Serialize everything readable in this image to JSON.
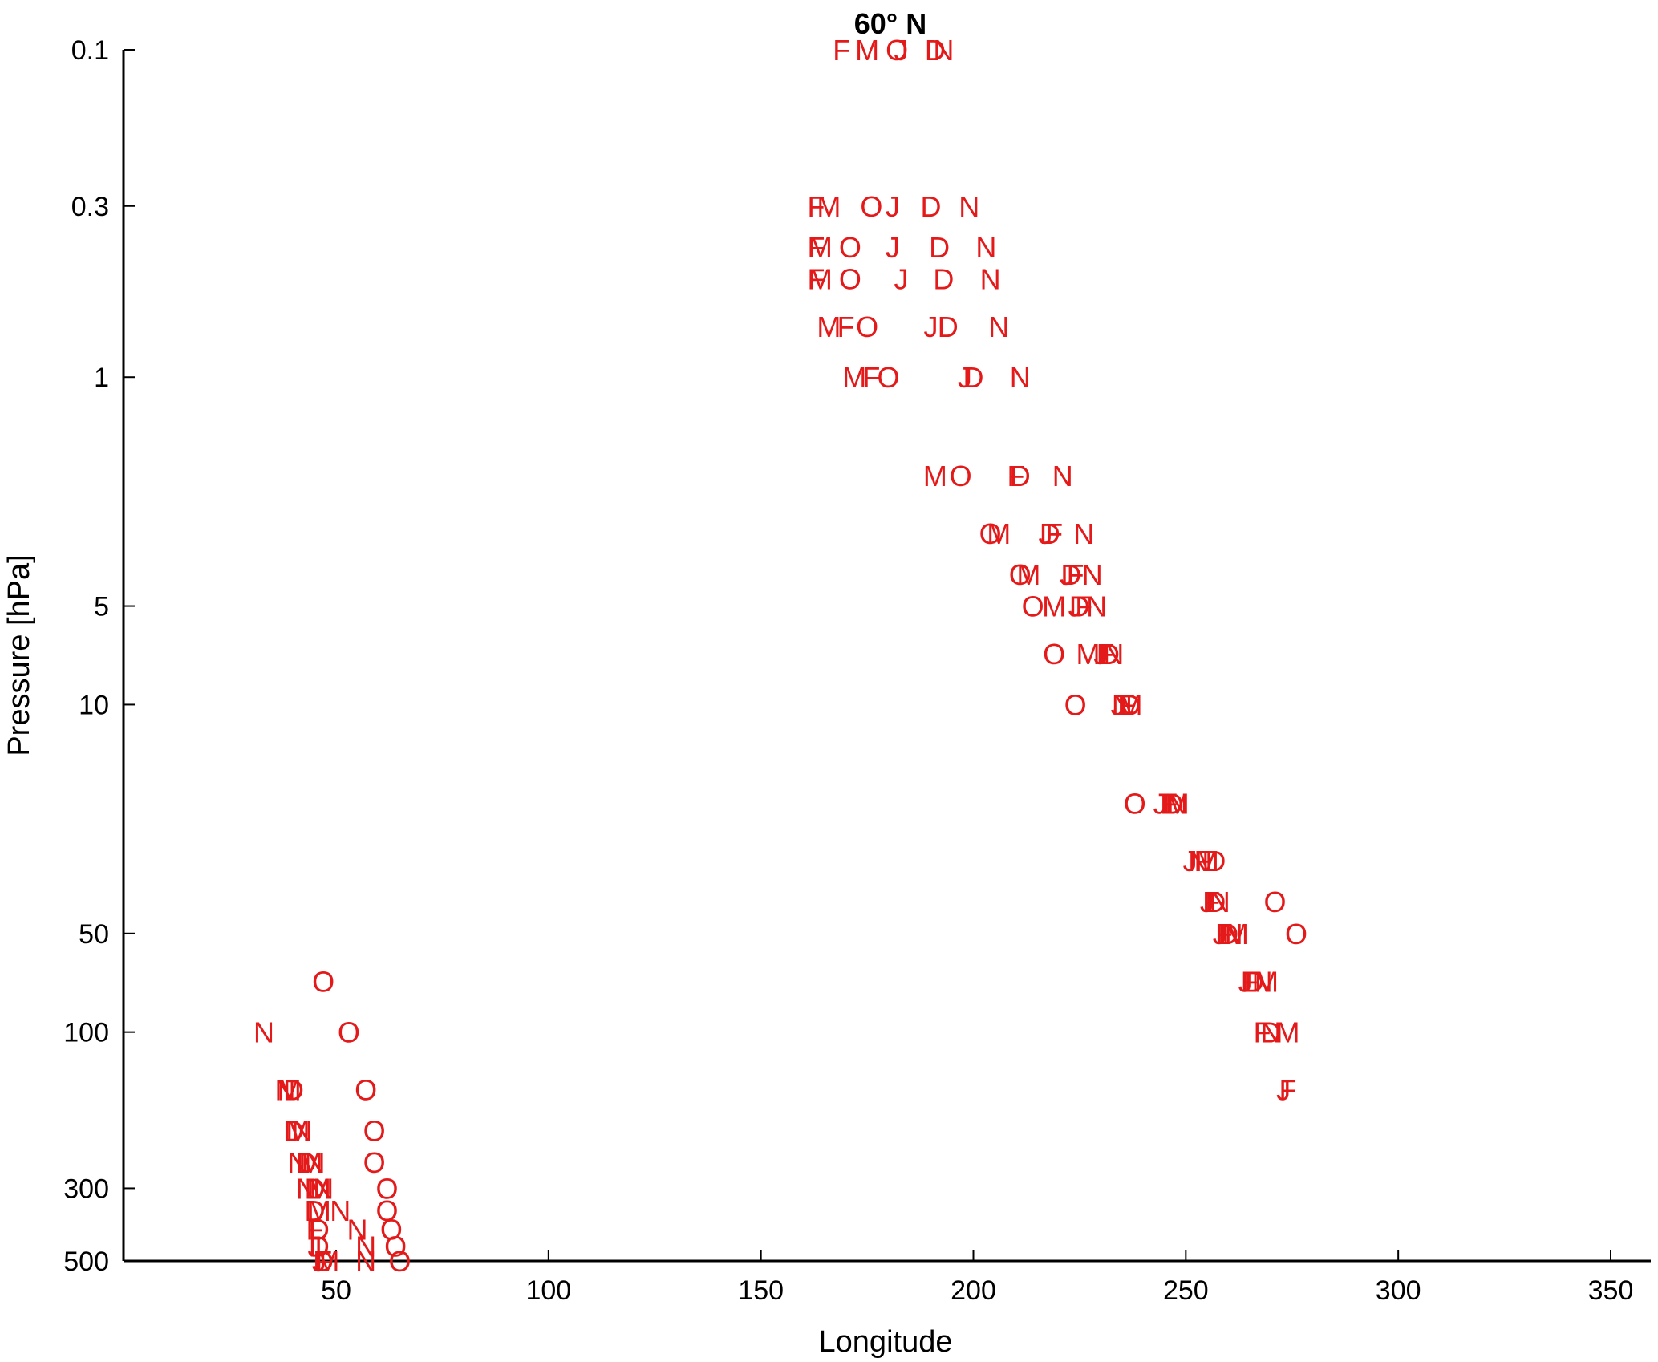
{
  "chart_data": {
    "type": "scatter",
    "title": "60° N",
    "xlabel": "Longitude",
    "ylabel": "Pressure [hPa]",
    "xlim": [
      0,
      360
    ],
    "ylim": [
      0.1,
      500
    ],
    "yscale": "log",
    "y_reversed": true,
    "grid": false,
    "color": "#e41a1a",
    "xticks": [
      50,
      100,
      150,
      200,
      250,
      300,
      350
    ],
    "xtick_labels": [
      "50",
      "100",
      "150",
      "200",
      "250",
      "300",
      "350"
    ],
    "yticks": [
      0.1,
      0.3,
      1,
      5,
      10,
      50,
      100,
      300,
      500
    ],
    "ytick_labels": [
      "0.1",
      "0.3",
      "1",
      "5",
      "10",
      "50",
      "100",
      "300",
      "500"
    ],
    "points": [
      {
        "label": "F",
        "x": 169,
        "y": 0.1
      },
      {
        "label": "M",
        "x": 175,
        "y": 0.1
      },
      {
        "label": "O",
        "x": 182,
        "y": 0.1
      },
      {
        "label": "J",
        "x": 183,
        "y": 0.1
      },
      {
        "label": "D",
        "x": 191,
        "y": 0.1
      },
      {
        "label": "N",
        "x": 193,
        "y": 0.1
      },
      {
        "label": "F",
        "x": 163,
        "y": 0.3
      },
      {
        "label": "M",
        "x": 166,
        "y": 0.3
      },
      {
        "label": "O",
        "x": 176,
        "y": 0.3
      },
      {
        "label": "J",
        "x": 181,
        "y": 0.3
      },
      {
        "label": "D",
        "x": 190,
        "y": 0.3
      },
      {
        "label": "N",
        "x": 199,
        "y": 0.3
      },
      {
        "label": "F",
        "x": 163,
        "y": 0.4
      },
      {
        "label": "M",
        "x": 164,
        "y": 0.4
      },
      {
        "label": "O",
        "x": 171,
        "y": 0.4
      },
      {
        "label": "J",
        "x": 181,
        "y": 0.4
      },
      {
        "label": "D",
        "x": 192,
        "y": 0.4
      },
      {
        "label": "N",
        "x": 203,
        "y": 0.4
      },
      {
        "label": "F",
        "x": 163,
        "y": 0.5
      },
      {
        "label": "M",
        "x": 164,
        "y": 0.5
      },
      {
        "label": "O",
        "x": 171,
        "y": 0.5
      },
      {
        "label": "J",
        "x": 183,
        "y": 0.5
      },
      {
        "label": "D",
        "x": 193,
        "y": 0.5
      },
      {
        "label": "N",
        "x": 204,
        "y": 0.5
      },
      {
        "label": "M",
        "x": 166,
        "y": 0.7
      },
      {
        "label": "F",
        "x": 170,
        "y": 0.7
      },
      {
        "label": "O",
        "x": 175,
        "y": 0.7
      },
      {
        "label": "J",
        "x": 190,
        "y": 0.7
      },
      {
        "label": "D",
        "x": 194,
        "y": 0.7
      },
      {
        "label": "N",
        "x": 206,
        "y": 0.7
      },
      {
        "label": "M",
        "x": 172,
        "y": 1
      },
      {
        "label": "F",
        "x": 176,
        "y": 1
      },
      {
        "label": "O",
        "x": 180,
        "y": 1
      },
      {
        "label": "J",
        "x": 198,
        "y": 1
      },
      {
        "label": "D",
        "x": 200,
        "y": 1
      },
      {
        "label": "N",
        "x": 211,
        "y": 1
      },
      {
        "label": "M",
        "x": 191,
        "y": 2
      },
      {
        "label": "O",
        "x": 197,
        "y": 2
      },
      {
        "label": "F",
        "x": 210,
        "y": 2
      },
      {
        "label": "D",
        "x": 211,
        "y": 2
      },
      {
        "label": "N",
        "x": 221,
        "y": 2
      },
      {
        "label": "O",
        "x": 204,
        "y": 3
      },
      {
        "label": "M",
        "x": 206,
        "y": 3
      },
      {
        "label": "J",
        "x": 217,
        "y": 3
      },
      {
        "label": "D",
        "x": 218,
        "y": 3
      },
      {
        "label": "F",
        "x": 219,
        "y": 3
      },
      {
        "label": "N",
        "x": 226,
        "y": 3
      },
      {
        "label": "O",
        "x": 211,
        "y": 4
      },
      {
        "label": "M",
        "x": 213,
        "y": 4
      },
      {
        "label": "J",
        "x": 222,
        "y": 4
      },
      {
        "label": "D",
        "x": 223,
        "y": 4
      },
      {
        "label": "F",
        "x": 224,
        "y": 4
      },
      {
        "label": "N",
        "x": 228,
        "y": 4
      },
      {
        "label": "O",
        "x": 214,
        "y": 5
      },
      {
        "label": "M",
        "x": 219,
        "y": 5
      },
      {
        "label": "J",
        "x": 224,
        "y": 5
      },
      {
        "label": "D",
        "x": 225,
        "y": 5
      },
      {
        "label": "F",
        "x": 226,
        "y": 5
      },
      {
        "label": "N",
        "x": 229,
        "y": 5
      },
      {
        "label": "O",
        "x": 219,
        "y": 7
      },
      {
        "label": "M",
        "x": 227,
        "y": 7
      },
      {
        "label": "J",
        "x": 230,
        "y": 7
      },
      {
        "label": "F",
        "x": 231,
        "y": 7
      },
      {
        "label": "D",
        "x": 232,
        "y": 7
      },
      {
        "label": "N",
        "x": 233,
        "y": 7
      },
      {
        "label": "O",
        "x": 224,
        "y": 10
      },
      {
        "label": "J",
        "x": 234,
        "y": 10
      },
      {
        "label": "N",
        "x": 235,
        "y": 10
      },
      {
        "label": "F",
        "x": 236,
        "y": 10
      },
      {
        "label": "M",
        "x": 237,
        "y": 10
      },
      {
        "label": "D",
        "x": 237,
        "y": 10
      },
      {
        "label": "O",
        "x": 238,
        "y": 20
      },
      {
        "label": "J",
        "x": 244,
        "y": 20
      },
      {
        "label": "F",
        "x": 246,
        "y": 20
      },
      {
        "label": "D",
        "x": 247,
        "y": 20
      },
      {
        "label": "N",
        "x": 248,
        "y": 20
      },
      {
        "label": "M",
        "x": 248,
        "y": 20
      },
      {
        "label": "J",
        "x": 251,
        "y": 30
      },
      {
        "label": "N",
        "x": 253,
        "y": 30
      },
      {
        "label": "F",
        "x": 254,
        "y": 30
      },
      {
        "label": "M",
        "x": 255,
        "y": 30
      },
      {
        "label": "D",
        "x": 257,
        "y": 30
      },
      {
        "label": "J",
        "x": 255,
        "y": 40
      },
      {
        "label": "F",
        "x": 256,
        "y": 40
      },
      {
        "label": "D",
        "x": 257,
        "y": 40
      },
      {
        "label": "N",
        "x": 258,
        "y": 40
      },
      {
        "label": "O",
        "x": 271,
        "y": 40
      },
      {
        "label": "J",
        "x": 258,
        "y": 50
      },
      {
        "label": "F",
        "x": 259,
        "y": 50
      },
      {
        "label": "D",
        "x": 260,
        "y": 50
      },
      {
        "label": "N",
        "x": 261,
        "y": 50
      },
      {
        "label": "M",
        "x": 262,
        "y": 50
      },
      {
        "label": "O",
        "x": 276,
        "y": 50
      },
      {
        "label": "J",
        "x": 264,
        "y": 70
      },
      {
        "label": "F",
        "x": 265,
        "y": 70
      },
      {
        "label": "D",
        "x": 266,
        "y": 70
      },
      {
        "label": "N",
        "x": 268,
        "y": 70
      },
      {
        "label": "M",
        "x": 269,
        "y": 70
      },
      {
        "label": "F",
        "x": 268,
        "y": 100
      },
      {
        "label": "D",
        "x": 270,
        "y": 100
      },
      {
        "label": "N",
        "x": 270,
        "y": 100
      },
      {
        "label": "M",
        "x": 274,
        "y": 100
      },
      {
        "label": "J",
        "x": 273,
        "y": 150
      },
      {
        "label": "F",
        "x": 274,
        "y": 150
      },
      {
        "label": "O",
        "x": 47,
        "y": 70
      },
      {
        "label": "N",
        "x": 33,
        "y": 100
      },
      {
        "label": "O",
        "x": 53,
        "y": 100
      },
      {
        "label": "N",
        "x": 38,
        "y": 150
      },
      {
        "label": "M",
        "x": 39,
        "y": 150
      },
      {
        "label": "D",
        "x": 40,
        "y": 150
      },
      {
        "label": "O",
        "x": 57,
        "y": 150
      },
      {
        "label": "D",
        "x": 40,
        "y": 200
      },
      {
        "label": "M",
        "x": 41,
        "y": 200
      },
      {
        "label": "N",
        "x": 42,
        "y": 200
      },
      {
        "label": "O",
        "x": 59,
        "y": 200
      },
      {
        "label": "N",
        "x": 41,
        "y": 250
      },
      {
        "label": "D",
        "x": 43,
        "y": 250
      },
      {
        "label": "M",
        "x": 44,
        "y": 250
      },
      {
        "label": "N",
        "x": 45,
        "y": 250
      },
      {
        "label": "O",
        "x": 59,
        "y": 250
      },
      {
        "label": "N",
        "x": 43,
        "y": 300
      },
      {
        "label": "D",
        "x": 45,
        "y": 300
      },
      {
        "label": "M",
        "x": 46,
        "y": 300
      },
      {
        "label": "N",
        "x": 47,
        "y": 300
      },
      {
        "label": "O",
        "x": 62,
        "y": 300
      },
      {
        "label": "D",
        "x": 45,
        "y": 350
      },
      {
        "label": "M",
        "x": 46,
        "y": 350
      },
      {
        "label": "N",
        "x": 51,
        "y": 350
      },
      {
        "label": "O",
        "x": 62,
        "y": 350
      },
      {
        "label": "F",
        "x": 45,
        "y": 400
      },
      {
        "label": "D",
        "x": 46,
        "y": 400
      },
      {
        "label": "N",
        "x": 55,
        "y": 400
      },
      {
        "label": "O",
        "x": 63,
        "y": 400
      },
      {
        "label": "J",
        "x": 45,
        "y": 450
      },
      {
        "label": "D",
        "x": 46,
        "y": 450
      },
      {
        "label": "N",
        "x": 57,
        "y": 450
      },
      {
        "label": "O",
        "x": 64,
        "y": 450
      },
      {
        "label": "J",
        "x": 46,
        "y": 500
      },
      {
        "label": "F",
        "x": 47,
        "y": 500
      },
      {
        "label": "D",
        "x": 47,
        "y": 500
      },
      {
        "label": "M",
        "x": 48,
        "y": 500
      },
      {
        "label": "N",
        "x": 57,
        "y": 500
      },
      {
        "label": "O",
        "x": 65,
        "y": 500
      }
    ]
  }
}
